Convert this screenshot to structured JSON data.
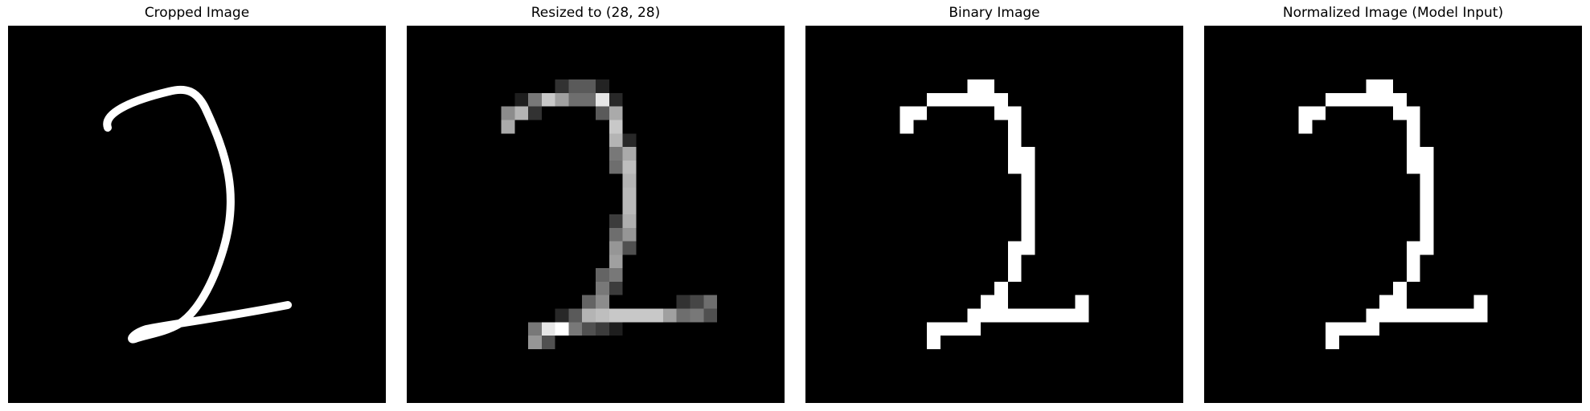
{
  "panels": [
    {
      "title": "Cropped Image"
    },
    {
      "title": "Resized to (28, 28)"
    },
    {
      "title": "Binary Image"
    },
    {
      "title": "Normalized Image (Model Input)"
    }
  ],
  "colors": {
    "background": "#000000",
    "foreground": "#ffffff",
    "page": "#ffffff"
  }
}
